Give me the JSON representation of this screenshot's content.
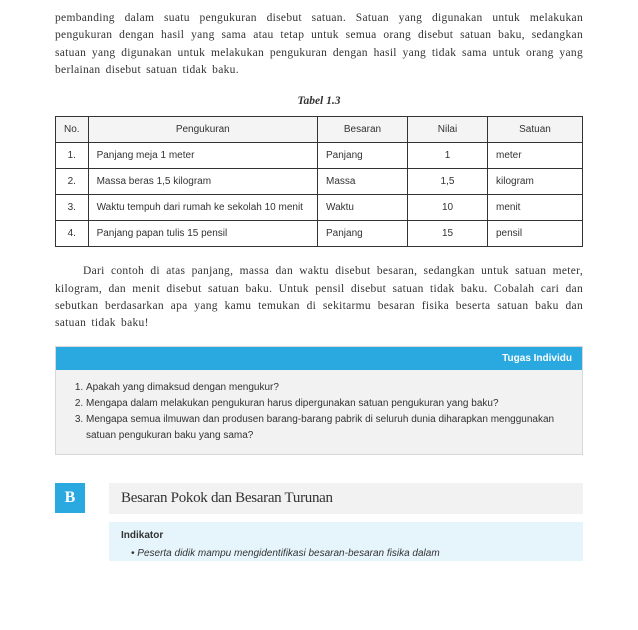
{
  "intro": {
    "text_html": "pembanding dalam suatu pengukuran disebut satuan. Satuan yang digunakan untuk melakukan pengukuran dengan hasil yang sama atau tetap untuk semua orang disebut satuan baku, sedangkan satuan yang digunakan untuk melakukan pengukuran dengan hasil yang tidak sama untuk orang yang berlainan disebut satuan tidak baku."
  },
  "table": {
    "caption": "Tabel 1.3",
    "columns": [
      "No.",
      "Pengukuran",
      "Besaran",
      "Nilai",
      "Satuan"
    ],
    "rows": [
      [
        "1.",
        "Panjang meja 1 meter",
        "Panjang",
        "1",
        "meter"
      ],
      [
        "2.",
        "Massa beras 1,5 kilogram",
        "Massa",
        "1,5",
        "kilogram"
      ],
      [
        "3.",
        "Waktu tempuh dari rumah ke sekolah 10 menit",
        "Waktu",
        "10",
        "menit"
      ],
      [
        "4.",
        "Panjang papan tulis 15 pensil",
        "Panjang",
        "15",
        "pensil"
      ]
    ]
  },
  "body": {
    "text": "Dari contoh di atas panjang, massa dan waktu disebut besaran, sedangkan untuk satuan meter, kilogram, dan menit disebut satuan baku. Untuk pensil disebut satuan tidak baku. Cobalah cari dan sebutkan berdasarkan apa yang kamu temukan di sekitarmu besaran fisika beserta satuan baku dan satuan tidak baku!"
  },
  "tugas": {
    "header": "Tugas Individu",
    "items": [
      "Apakah yang dimaksud dengan mengukur?",
      "Mengapa dalam melakukan pengukuran harus dipergunakan satuan pengukuran yang baku?",
      "Mengapa semua ilmuwan dan produsen barang-barang pabrik di seluruh dunia diharapkan menggunakan satuan pengukuran baku yang sama?"
    ]
  },
  "section": {
    "badge": "B",
    "title": "Besaran Pokok dan Besaran Turunan"
  },
  "indikator": {
    "title": "Indikator",
    "bullet1": "Peserta didik mampu mengidentifikasi besaran-besaran fisika dalam"
  },
  "colors": {
    "accent": "#2aa9e0",
    "light_bg": "#f2f2f2",
    "indikator_bg": "#e6f5fc",
    "border": "#333333"
  }
}
